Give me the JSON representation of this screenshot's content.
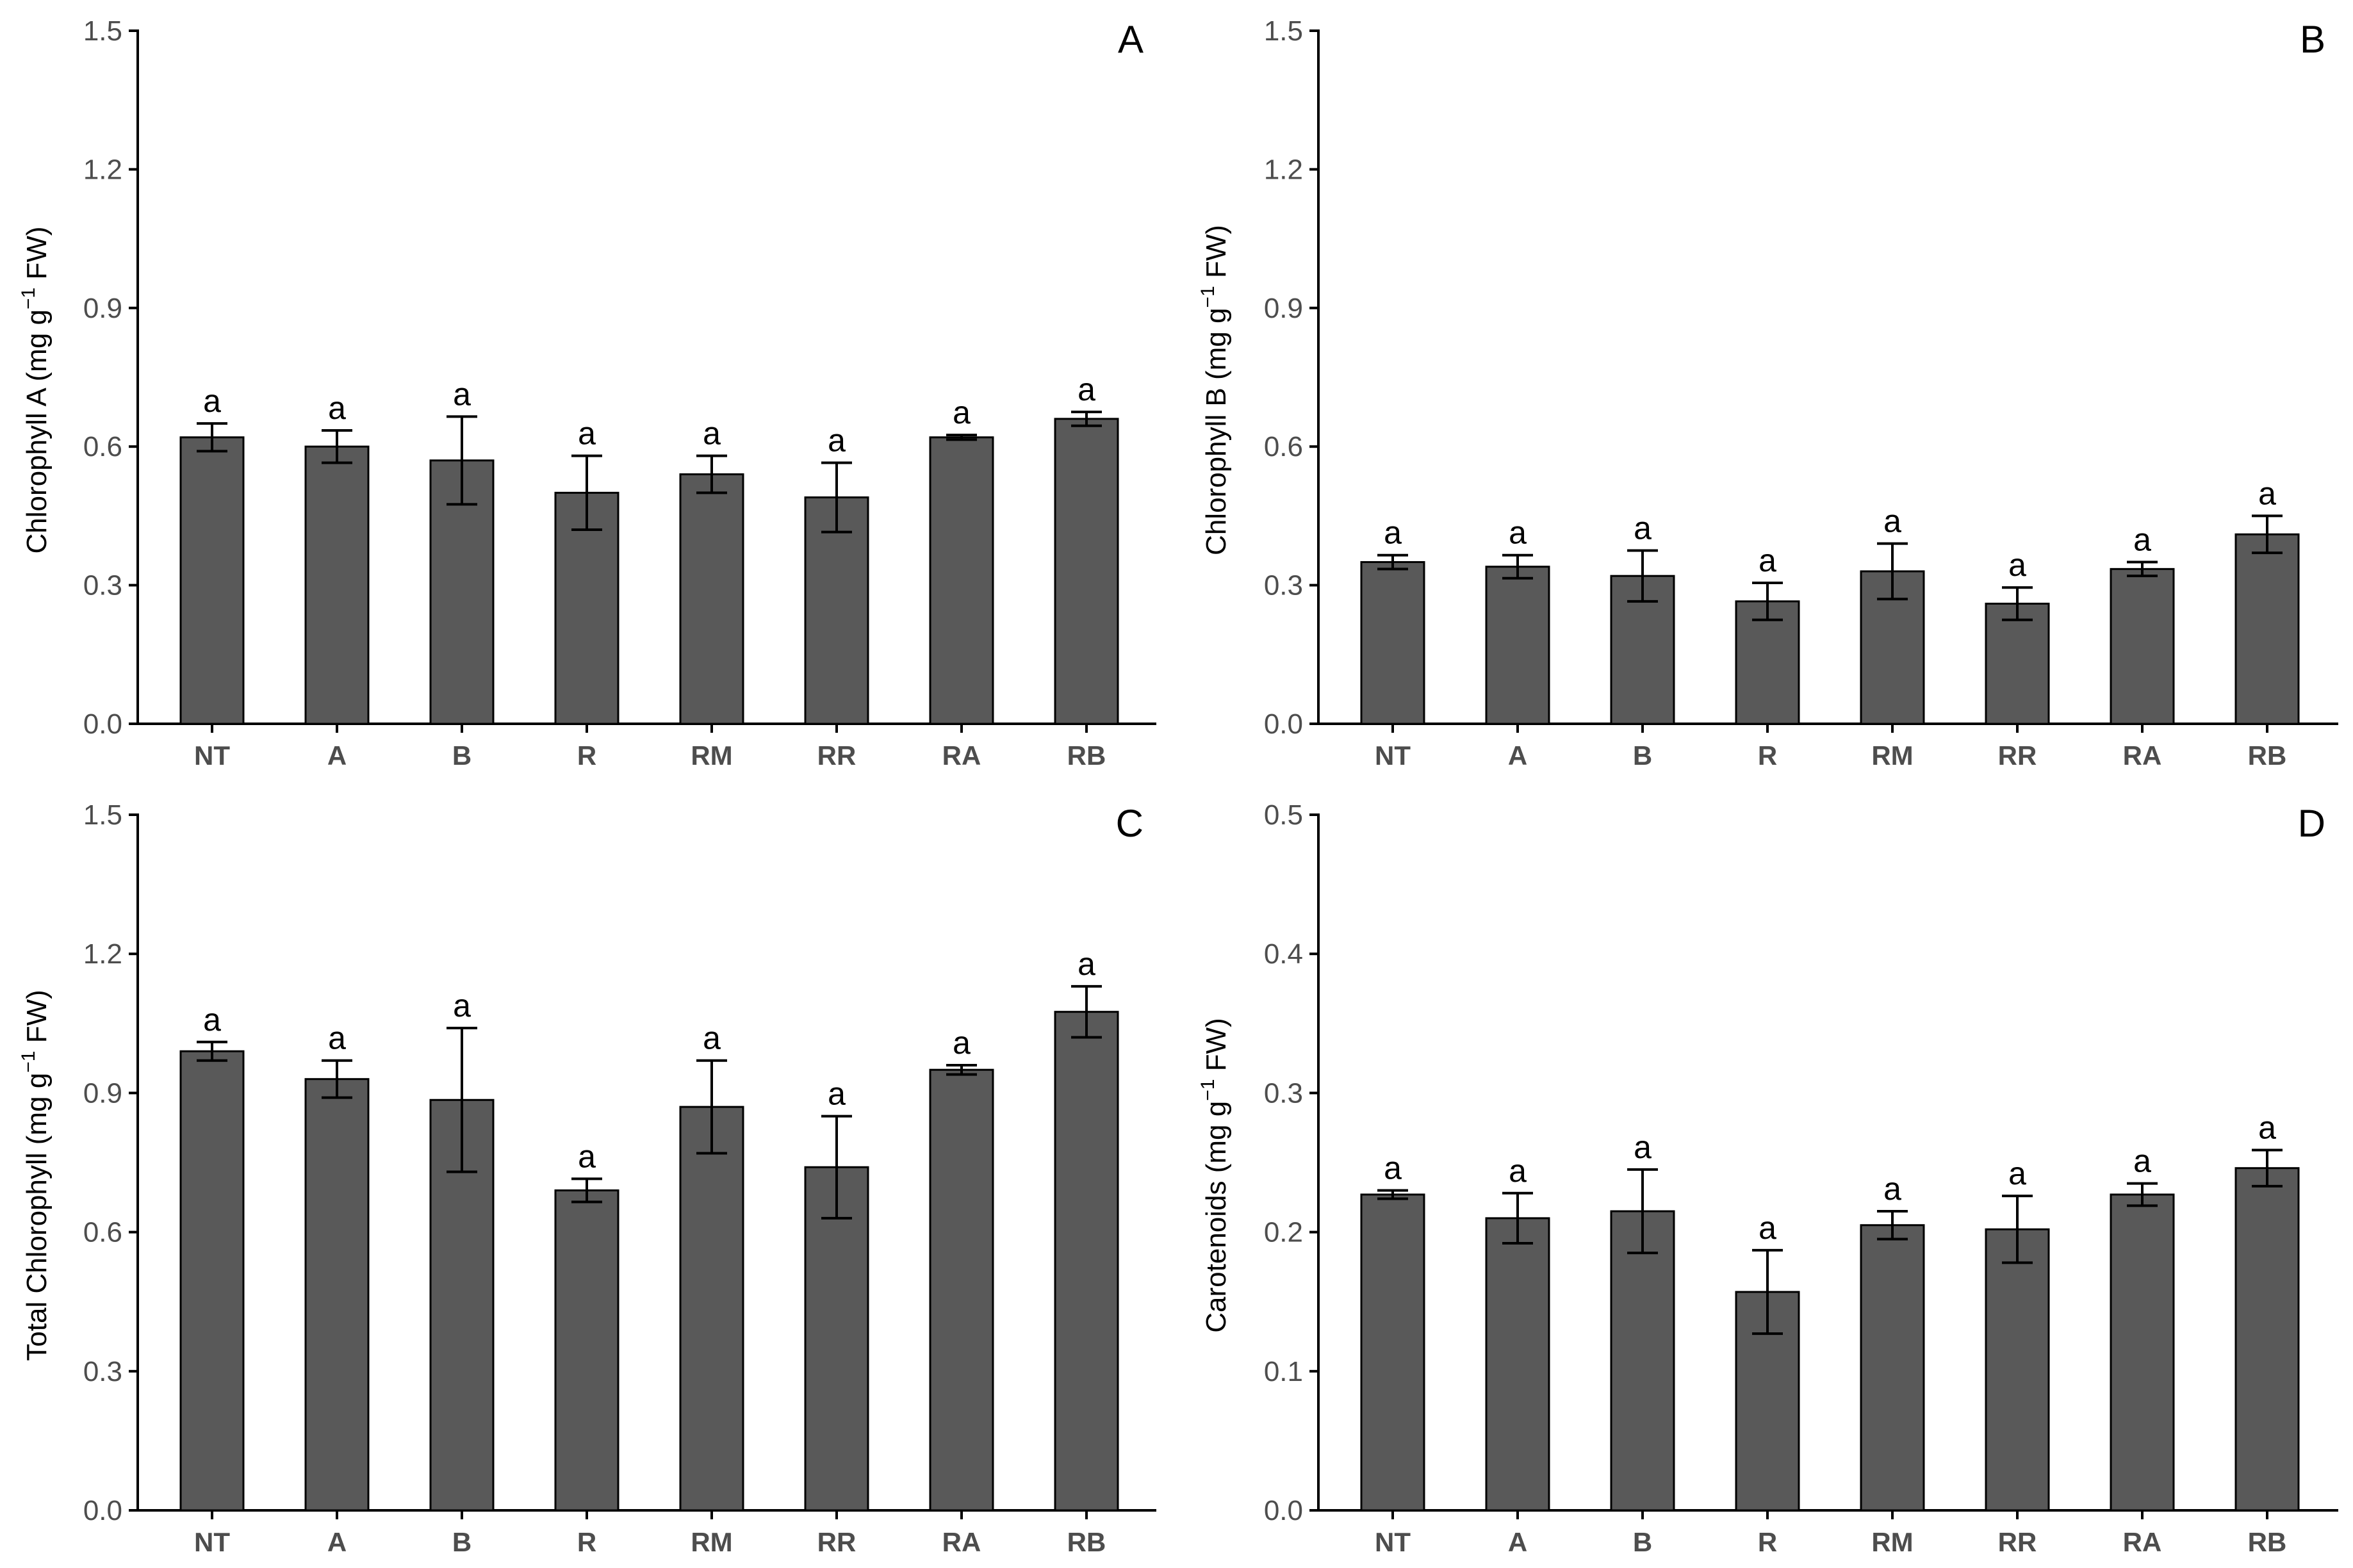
{
  "chart_data": [
    {
      "type": "bar",
      "panel": "A",
      "ylabel": {
        "main": "Chlorophyll A (mg  g",
        "sup": "−1",
        "tail": " FW)"
      },
      "categories": [
        "NT",
        "A",
        "B",
        "R",
        "RM",
        "RR",
        "RA",
        "RB"
      ],
      "values": [
        0.62,
        0.6,
        0.57,
        0.5,
        0.54,
        0.49,
        0.62,
        0.66
      ],
      "errors": [
        0.03,
        0.035,
        0.095,
        0.08,
        0.04,
        0.075,
        0.005,
        0.015
      ],
      "labels": [
        "a",
        "a",
        "a",
        "a",
        "a",
        "a",
        "a",
        "a"
      ],
      "ylim": [
        0,
        1.5
      ],
      "yticks": [
        0.0,
        0.3,
        0.6,
        0.9,
        1.2,
        1.5
      ],
      "ytick_labels": [
        "0.0",
        "0.3",
        "0.6",
        "0.9",
        "1.2",
        "1.5"
      ]
    },
    {
      "type": "bar",
      "panel": "B",
      "ylabel": {
        "main": "Chlorophyll B (mg  g",
        "sup": "−1",
        "tail": " FW)"
      },
      "categories": [
        "NT",
        "A",
        "B",
        "R",
        "RM",
        "RR",
        "RA",
        "RB"
      ],
      "values": [
        0.35,
        0.34,
        0.32,
        0.265,
        0.33,
        0.26,
        0.335,
        0.41
      ],
      "errors": [
        0.015,
        0.025,
        0.055,
        0.04,
        0.06,
        0.035,
        0.015,
        0.04
      ],
      "labels": [
        "a",
        "a",
        "a",
        "a",
        "a",
        "a",
        "a",
        "a"
      ],
      "ylim": [
        0,
        1.5
      ],
      "yticks": [
        0.0,
        0.3,
        0.6,
        0.9,
        1.2,
        1.5
      ],
      "ytick_labels": [
        "0.0",
        "0.3",
        "0.6",
        "0.9",
        "1.2",
        "1.5"
      ]
    },
    {
      "type": "bar",
      "panel": "C",
      "ylabel": {
        "main": "Total Chlorophyll (mg  g",
        "sup": "−1",
        "tail": " FW)"
      },
      "categories": [
        "NT",
        "A",
        "B",
        "R",
        "RM",
        "RR",
        "RA",
        "RB"
      ],
      "values": [
        0.99,
        0.93,
        0.885,
        0.69,
        0.87,
        0.74,
        0.95,
        1.075
      ],
      "errors": [
        0.02,
        0.04,
        0.155,
        0.025,
        0.1,
        0.11,
        0.01,
        0.055
      ],
      "labels": [
        "a",
        "a",
        "a",
        "a",
        "a",
        "a",
        "a",
        "a"
      ],
      "ylim": [
        0,
        1.5
      ],
      "yticks": [
        0.0,
        0.3,
        0.6,
        0.9,
        1.2,
        1.5
      ],
      "ytick_labels": [
        "0.0",
        "0.3",
        "0.6",
        "0.9",
        "1.2",
        "1.5"
      ]
    },
    {
      "type": "bar",
      "panel": "D",
      "ylabel": {
        "main": "Carotenoids (mg  g",
        "sup": "−1",
        "tail": " FW)"
      },
      "categories": [
        "NT",
        "A",
        "B",
        "R",
        "RM",
        "RR",
        "RA",
        "RB"
      ],
      "values": [
        0.227,
        0.21,
        0.215,
        0.157,
        0.205,
        0.202,
        0.227,
        0.246
      ],
      "errors": [
        0.003,
        0.018,
        0.03,
        0.03,
        0.01,
        0.024,
        0.008,
        0.013
      ],
      "labels": [
        "a",
        "a",
        "a",
        "a",
        "a",
        "a",
        "a",
        "a"
      ],
      "ylim": [
        0,
        0.5
      ],
      "yticks": [
        0.0,
        0.1,
        0.2,
        0.3,
        0.4,
        0.5
      ],
      "ytick_labels": [
        "0.0",
        "0.1",
        "0.2",
        "0.3",
        "0.4",
        "0.5"
      ]
    }
  ]
}
